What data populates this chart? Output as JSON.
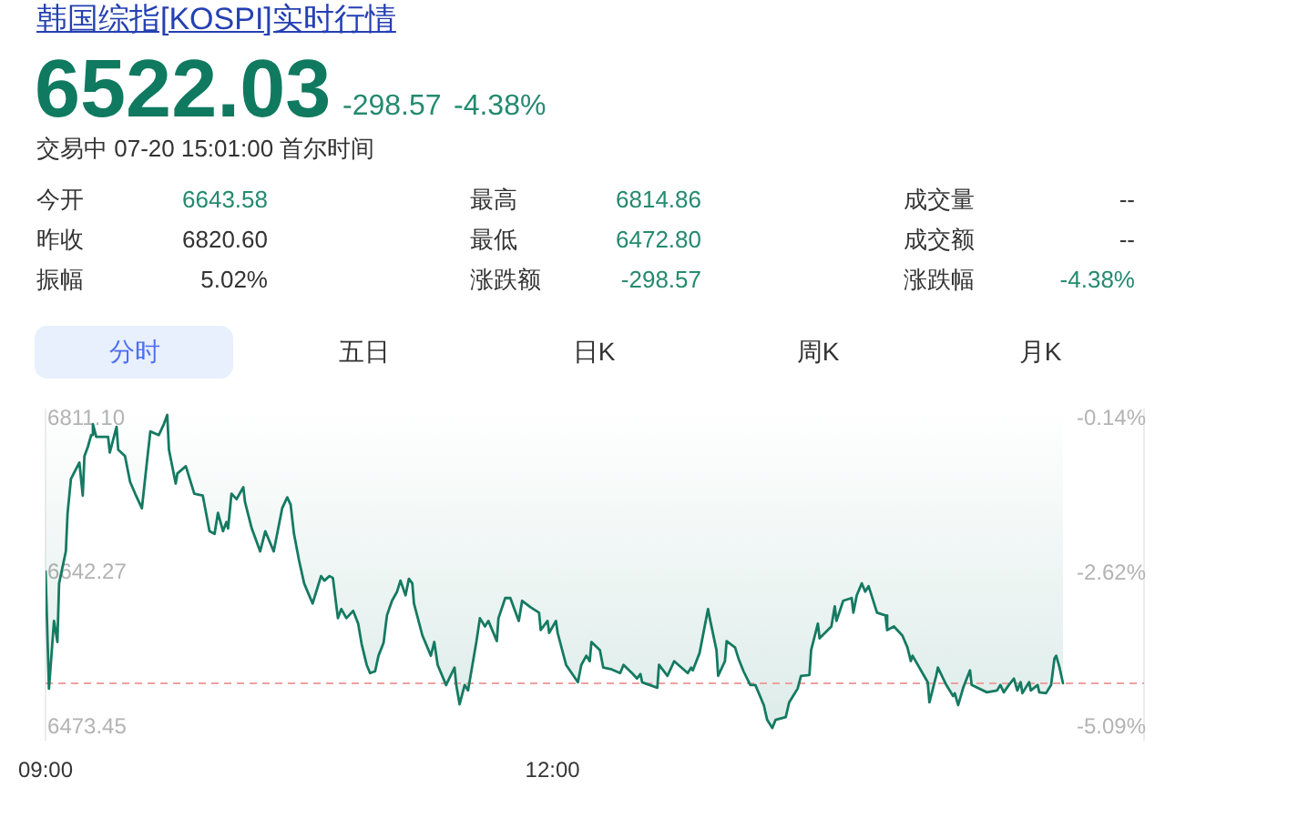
{
  "chart_data": {
    "type": "line",
    "title": "韩国综指[KOSPI]实时行情",
    "annotations": [
      "6522.03",
      "-298.57",
      "-4.38%",
      "交易中 07-20 15:01:00 首尔时间",
      "今开",
      "6643.58",
      "最高",
      "6814.86",
      "成交量",
      "--",
      "昨收",
      "6820.60",
      "最低",
      "6472.80",
      "成交额",
      "--",
      "振幅",
      "5.02%",
      "涨跌额",
      "-298.57",
      "涨跌幅",
      "-4.38%",
      "分时",
      "五日",
      "日K",
      "周K",
      "月K"
    ],
    "x": [
      9,
      9.02,
      9.05,
      9.07,
      9.08,
      9.12,
      9.13,
      9.15,
      9.2,
      9.22,
      9.23,
      9.25,
      9.27,
      9.28,
      9.3,
      9.37,
      9.38,
      9.42,
      9.43,
      9.47,
      9.5,
      9.53,
      9.57,
      9.6,
      9.62,
      9.67,
      9.7,
      9.72,
      9.73,
      9.77,
      9.78,
      9.83,
      9.88,
      9.93,
      9.97,
      10,
      10.02,
      10.05,
      10.07,
      10.08,
      10.1,
      10.13,
      10.17,
      10.18,
      10.22,
      10.27,
      10.3,
      10.35,
      10.4,
      10.43,
      10.45,
      10.47,
      10.5,
      10.53,
      10.58,
      10.63,
      10.65,
      10.68,
      10.7,
      10.73,
      10.75,
      10.78,
      10.82,
      10.85,
      10.87,
      10.9,
      10.92,
      10.95,
      10.97,
      11,
      11.02,
      11.05,
      11.08,
      11.1,
      11.13,
      11.15,
      11.17,
      11.18,
      11.23,
      11.28,
      11.3,
      11.32,
      11.37,
      11.42,
      11.43,
      11.45,
      11.48,
      11.5,
      11.55,
      11.57,
      11.6,
      11.62,
      11.67,
      11.68,
      11.72,
      11.75,
      11.8,
      11.82,
      11.87,
      11.92,
      11.93,
      11.97,
      11.98,
      12.02,
      12.03,
      12.08,
      12.15,
      12.17,
      12.2,
      12.22,
      12.23,
      12.28,
      12.3,
      12.35,
      12.4,
      12.42,
      12.47,
      12.5,
      12.52,
      12.53,
      12.62,
      12.63,
      12.68,
      12.72,
      12.8,
      12.82,
      12.83,
      12.87,
      12.92,
      12.93,
      12.97,
      12.98,
      13.02,
      13.03,
      13.08,
      13.1,
      13.13,
      13.17,
      13.2,
      13.25,
      13.27,
      13.3,
      13.32,
      13.38,
      13.4,
      13.45,
      13.47,
      13.52,
      13.53,
      13.57,
      13.58,
      13.65,
      13.67,
      13.68,
      13.72,
      13.77,
      13.78,
      13.8,
      13.83,
      13.85,
      13.87,
      13.92,
      13.97,
      13.98,
      14.02,
      14.07,
      14.1,
      14.12,
      14.13,
      14.22,
      14.23,
      14.27,
      14.28,
      14.33,
      14.37,
      14.38,
      14.4,
      14.43,
      14.47,
      14.48,
      14.57,
      14.63,
      14.65,
      14.67,
      14.7,
      14.73,
      14.75,
      14.77,
      14.78,
      14.82,
      14.83,
      14.87,
      14.88,
      14.92,
      14.95,
      14.97,
      14.98,
      15,
      15.02
    ],
    "series": [
      {
        "color": "#157a62",
        "values": [
          6644,
          6516,
          6590,
          6567,
          6631,
          6666,
          6707,
          6745,
          6763,
          6727,
          6770,
          6780,
          6793,
          6805,
          6791,
          6791,
          6774,
          6802,
          6777,
          6770,
          6742,
          6729,
          6713,
          6764,
          6797,
          6793,
          6805,
          6815,
          6777,
          6740,
          6751,
          6759,
          6729,
          6727,
          6688,
          6685,
          6708,
          6688,
          6698,
          6691,
          6729,
          6723,
          6736,
          6720,
          6691,
          6666,
          6688,
          6666,
          6713,
          6725,
          6717,
          6685,
          6656,
          6631,
          6609,
          6639,
          6634,
          6639,
          6637,
          6593,
          6603,
          6593,
          6601,
          6587,
          6565,
          6542,
          6533,
          6535,
          6552,
          6566,
          6596,
          6612,
          6622,
          6634,
          6618,
          6636,
          6631,
          6609,
          6574,
          6552,
          6567,
          6542,
          6520,
          6539,
          6520,
          6499,
          6520,
          6514,
          6568,
          6593,
          6584,
          6590,
          6568,
          6593,
          6615,
          6615,
          6590,
          6612,
          6605,
          6599,
          6580,
          6590,
          6577,
          6590,
          6577,
          6542,
          6523,
          6542,
          6552,
          6546,
          6567,
          6558,
          6539,
          6537,
          6533,
          6542,
          6533,
          6527,
          6532,
          6523,
          6517,
          6542,
          6530,
          6546,
          6533,
          6539,
          6536,
          6555,
          6603,
          6593,
          6558,
          6530,
          6546,
          6568,
          6561,
          6549,
          6535,
          6520,
          6520,
          6498,
          6482,
          6473,
          6482,
          6485,
          6501,
          6516,
          6530,
          6531,
          6558,
          6587,
          6571,
          6584,
          6606,
          6590,
          6612,
          6615,
          6599,
          6618,
          6631,
          6622,
          6628,
          6599,
          6596,
          6580,
          6584,
          6574,
          6561,
          6546,
          6552,
          6523,
          6501,
          6530,
          6539,
          6520,
          6508,
          6511,
          6498,
          6517,
          6536,
          6520,
          6512,
          6514,
          6520,
          6512,
          6520,
          6527,
          6514,
          6523,
          6511,
          6523,
          6514,
          6520,
          6512,
          6511,
          6520,
          6549,
          6552,
          6539,
          6522
        ],
        "lower": [
          6644,
          6516,
          6590,
          6567,
          6631,
          6666,
          6707,
          6745,
          6763,
          6727,
          6770,
          6780,
          6793,
          6805,
          6791,
          6791,
          6774,
          6802,
          6777,
          6770,
          6742,
          6729,
          6713,
          6764,
          6797,
          6793,
          6805,
          6815,
          6777,
          6740,
          6751,
          6759,
          6729,
          6727,
          6688,
          6685,
          6708,
          6688,
          6698,
          6691,
          6729,
          6723,
          6736,
          6720,
          6691,
          6666,
          6688,
          6666,
          6713,
          6725,
          6717,
          6685,
          6656,
          6631,
          6609,
          6639,
          6634,
          6639,
          6637,
          6593,
          6603,
          6593,
          6601,
          6587,
          6565,
          6542,
          6533,
          6535,
          6552,
          6566,
          6596,
          6612,
          6622,
          6634,
          6618,
          6636,
          6631,
          6609,
          6574,
          6552,
          6567,
          6542,
          6520,
          6539,
          6520,
          6499,
          6520,
          6514,
          6568,
          6593,
          6584,
          6590,
          6568,
          6593,
          6615,
          6615,
          6590,
          6612,
          6605,
          6599,
          6580,
          6590,
          6577,
          6590,
          6577,
          6542,
          6523,
          6542,
          6552,
          6546,
          6567,
          6558,
          6539,
          6537,
          6533,
          6542,
          6533,
          6527,
          6532,
          6523,
          6517,
          6542,
          6530,
          6546,
          6533,
          6539,
          6536,
          6555,
          6603,
          6593,
          6558,
          6530,
          6546,
          6568,
          6561,
          6549,
          6535,
          6520,
          6520,
          6498,
          6482,
          6473,
          6482,
          6485,
          6501,
          6516,
          6530,
          6531,
          6558,
          6587,
          6571,
          6584,
          6606,
          6590,
          6612,
          6615,
          6599,
          6618,
          6631,
          6622,
          6628,
          6599,
          6596,
          6580,
          6584,
          6574,
          6561,
          6546,
          6552,
          6523,
          6501,
          6530,
          6539,
          6520,
          6508,
          6511,
          6498,
          6517,
          6536,
          6520,
          6512,
          6514,
          6520,
          6512,
          6520,
          6527,
          6514,
          6523,
          6511,
          6523,
          6514,
          6520,
          6512,
          6511,
          6520,
          6549,
          6552,
          6539,
          6522
        ],
        "upper": [
          6821,
          6821,
          6821,
          6821,
          6821,
          6821,
          6821,
          6821,
          6821,
          6821,
          6821,
          6821,
          6821,
          6821,
          6821,
          6821,
          6821,
          6821,
          6821,
          6821,
          6821,
          6821,
          6821,
          6821,
          6821,
          6821,
          6821,
          6821,
          6821,
          6821,
          6821,
          6821,
          6821,
          6821,
          6821,
          6821,
          6821,
          6821,
          6821,
          6821,
          6821,
          6821,
          6821,
          6821,
          6821,
          6821,
          6821,
          6821,
          6821,
          6821,
          6821,
          6821,
          6821,
          6821,
          6821,
          6821,
          6821,
          6821,
          6821,
          6821,
          6821,
          6821,
          6821,
          6821,
          6821,
          6821,
          6821,
          6821,
          6821,
          6821,
          6821,
          6821,
          6821,
          6821,
          6821,
          6821,
          6821,
          6821,
          6821,
          6821,
          6821,
          6821,
          6821,
          6821,
          6821,
          6821,
          6821,
          6821,
          6821,
          6821,
          6821,
          6821,
          6821,
          6821,
          6821,
          6821,
          6821,
          6821,
          6821,
          6821,
          6821,
          6821,
          6821,
          6821,
          6821,
          6821,
          6821,
          6821,
          6821,
          6821,
          6821,
          6821,
          6821,
          6821,
          6821,
          6821,
          6821,
          6821,
          6821,
          6821,
          6821,
          6821,
          6821,
          6821,
          6821,
          6821,
          6821,
          6821,
          6821,
          6821,
          6821,
          6821,
          6821,
          6821,
          6821,
          6821,
          6821,
          6821,
          6821,
          6821,
          6821,
          6821,
          6821,
          6821,
          6821,
          6821,
          6821,
          6821,
          6821,
          6821,
          6821,
          6821,
          6821,
          6821,
          6821,
          6821,
          6821,
          6821,
          6821,
          6821,
          6821,
          6821,
          6821,
          6821,
          6821,
          6821,
          6821,
          6821,
          6821,
          6821,
          6821,
          6821,
          6821,
          6821,
          6821,
          6821,
          6821,
          6821,
          6821,
          6821,
          6821,
          6821,
          6821,
          6821,
          6821,
          6821,
          6821,
          6821,
          6821,
          6821,
          6821,
          6821,
          6821,
          6821,
          6821,
          6821,
          6821,
          6821,
          6821
        ]
      }
    ],
    "xlim": [
      9,
      15.5
    ],
    "xticks": [
      {
        "value": 9,
        "label": "09:00"
      },
      {
        "value": 12,
        "label": "12:00"
      }
    ],
    "ylim": [
      6460,
      6821
    ],
    "yticks": [
      {
        "value": 6811.1,
        "label": "6811.10"
      },
      6642.27,
      6473.45
    ],
    "y2lim": [
      -5.29,
      0.01
    ],
    "y2ticks": [
      {
        "value": -0.14,
        "label": "-0.14%"
      },
      {
        "value": -2.62,
        "label": "-2.62%"
      },
      {
        "value": -5.09,
        "label": "-5.09%"
      }
    ],
    "ref_lines": [
      {
        "axis": "y",
        "value": 6522,
        "color": "#f0a0a0",
        "line_style": "dashed"
      }
    ]
  }
}
